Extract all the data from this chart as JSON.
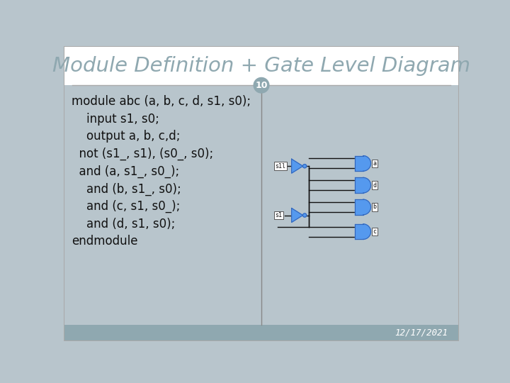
{
  "title": "Module Definition + Gate Level Diagram",
  "page_number": "10",
  "date": "12/17/2021",
  "bg_color": "#b8c5cc",
  "title_bg": "#ffffff",
  "title_color": "#8fa8b0",
  "bottom_bar_color": "#8fa8b0",
  "code_lines": [
    [
      "module abc (a, b, c, d, s1, s0);",
      0
    ],
    [
      "    input s1, s0;",
      1
    ],
    [
      "    output a, b, c,d;",
      1
    ],
    [
      "  not (s1_, s1), (s0_, s0);",
      2
    ],
    [
      "  and (a, s1_, s0_);",
      2
    ],
    [
      "    and (b, s1_, s0);",
      3
    ],
    [
      "    and (c, s1, s0_);",
      3
    ],
    [
      "    and (d, s1, s0);",
      3
    ],
    [
      "endmodule",
      0
    ]
  ],
  "gate_fill": "#5599ee",
  "gate_edge": "#3366bb",
  "wire_color": "#111111",
  "label_bg": "#ffffff",
  "label_edge": "#555555"
}
